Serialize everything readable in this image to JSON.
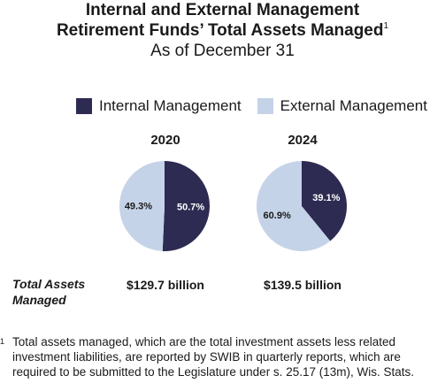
{
  "title": {
    "line1": "Internal and External Management",
    "line2": "Retirement Funds’ Total Assets Managed",
    "footnote_mark": "1",
    "line3": "As of December 31"
  },
  "colors": {
    "internal": "#2d2b52",
    "external": "#c5d3e8"
  },
  "total_label": "Total Assets Managed",
  "footnote": {
    "mark": "1",
    "text": "Total assets managed, which are the total investment assets less related investment liabilities, are reported by SWIB in quarterly reports, which are required to be submitted to the Legislature under s. 25.17 (13m), Wis. Stats."
  },
  "chart_data": [
    {
      "type": "pie",
      "title": "2020",
      "legend": [
        "Internal Management",
        "External Management"
      ],
      "legend_position": "top",
      "slices": [
        {
          "name": "Internal Management",
          "value": 50.7,
          "label": "50.7%"
        },
        {
          "name": "External Management",
          "value": 49.3,
          "label": "49.3%"
        }
      ],
      "total": "$129.7 billion"
    },
    {
      "type": "pie",
      "title": "2024",
      "legend": [
        "Internal Management",
        "External Management"
      ],
      "legend_position": "top",
      "slices": [
        {
          "name": "Internal Management",
          "value": 39.1,
          "label": "39.1%"
        },
        {
          "name": "External Management",
          "value": 60.9,
          "label": "60.9%"
        }
      ],
      "total": "$139.5 billion"
    }
  ]
}
